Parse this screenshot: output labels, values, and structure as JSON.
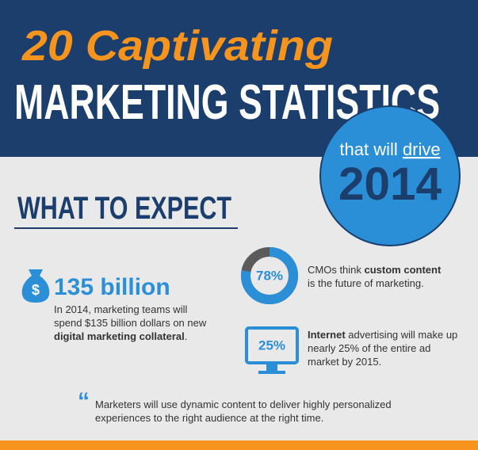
{
  "header": {
    "title_script": "20 Captivating",
    "title_main": "MARKETING STATISTICS",
    "badge": {
      "line_prefix": "that will ",
      "line_emphasis": "drive",
      "year": "2014"
    }
  },
  "section": {
    "heading": "WHAT TO EXPECT"
  },
  "stats": [
    {
      "icon_symbol": "$",
      "headline": "135 billion",
      "text": [
        {
          "text": "In 2014, marketing teams will spend $135 billion dollars on new "
        },
        {
          "text": "digital marketing collateral",
          "bold": true
        },
        {
          "text": "."
        }
      ]
    },
    {
      "percent": {
        "value": 78,
        "label": "78%"
      },
      "text": [
        {
          "text": "CMOs think "
        },
        {
          "text": "custom content",
          "bold": true
        },
        {
          "text": " is the future of marketing."
        }
      ]
    },
    {
      "screen_label": "25%",
      "text": [
        {
          "text": "Internet",
          "bold": true
        },
        {
          "text": " advertising will make up nearly 25% of the entire ad market by 2015."
        }
      ]
    }
  ],
  "quote": {
    "mark": "“",
    "text": "Marketers will use dynamic content to deliver highly personalized experiences to the right audience at the right time."
  }
}
